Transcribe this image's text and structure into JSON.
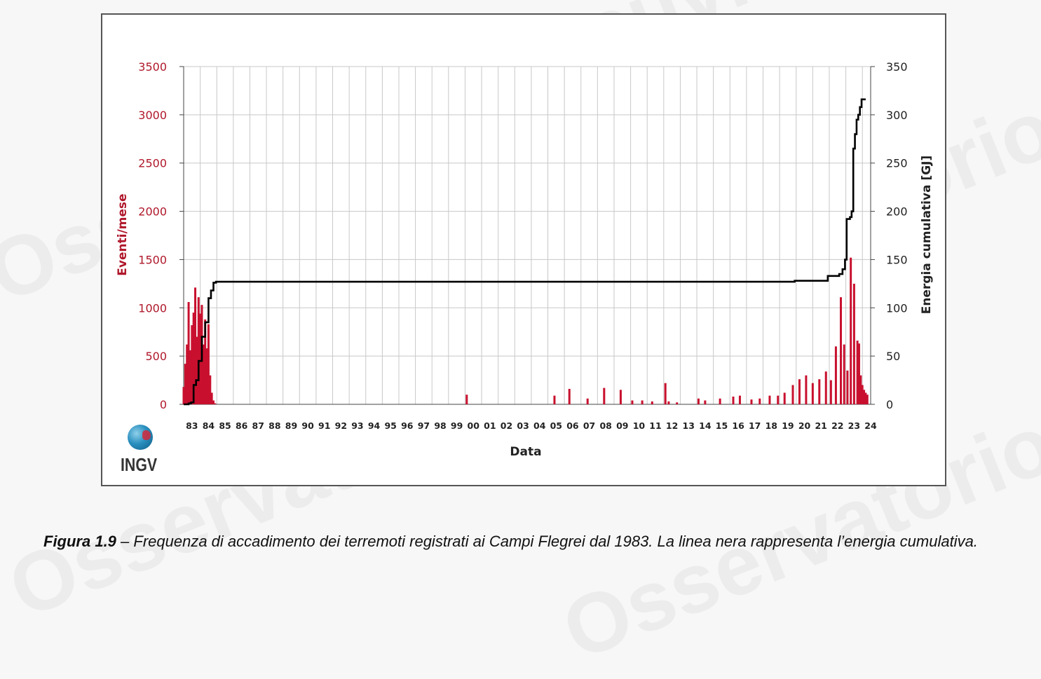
{
  "caption": {
    "label": "Figura 1.9",
    "text": " – Frequenza di accadimento dei terremoti registrati ai Campi Flegrei dal 1983. La linea nera rappresenta l’energia cumulativa."
  },
  "logo": {
    "text": "INGV",
    "icon": "ingv-globe-icon"
  },
  "watermark": {
    "text": "Osservatorio Vesuviano"
  },
  "colors": {
    "bars": "#c8102e",
    "line": "#000000",
    "left_axis": "#b0182b",
    "grid": "#c8c8c8"
  },
  "chart_data": {
    "type": "bar",
    "title": "",
    "xlabel": "Data",
    "ylabel": "Eventi/mese",
    "y2label": "Energia cumulativa [GJ]",
    "ylim": [
      0,
      3500
    ],
    "y2lim": [
      0,
      350
    ],
    "yticks": [
      "0",
      "500",
      "1000",
      "1500",
      "2000",
      "2500",
      "3000",
      "3500"
    ],
    "y2ticks": [
      "0",
      "50",
      "100",
      "150",
      "200",
      "250",
      "300",
      "350"
    ],
    "xticks": [
      "83",
      "84",
      "85",
      "86",
      "87",
      "88",
      "89",
      "90",
      "91",
      "92",
      "93",
      "94",
      "95",
      "96",
      "97",
      "98",
      "99",
      "00",
      "01",
      "02",
      "03",
      "04",
      "05",
      "06",
      "07",
      "08",
      "09",
      "10",
      "11",
      "12",
      "13",
      "14",
      "15",
      "16",
      "17",
      "18",
      "19",
      "20",
      "21",
      "22",
      "23",
      "24"
    ],
    "grid": true,
    "series": [
      {
        "type": "bar",
        "axis": "left",
        "x": [
          1983.0,
          1983.1,
          1983.2,
          1983.3,
          1983.4,
          1983.5,
          1983.6,
          1983.7,
          1983.8,
          1983.9,
          1984.0,
          1984.1,
          1984.2,
          1984.3,
          1984.4,
          1984.5,
          1984.6,
          1984.7,
          1984.8,
          1984.9,
          2000.1,
          2005.4,
          2006.3,
          2007.4,
          2008.4,
          2009.4,
          2010.1,
          2010.7,
          2011.3,
          2012.1,
          2012.3,
          2012.8,
          2014.1,
          2014.5,
          2015.4,
          2016.2,
          2016.6,
          2017.3,
          2017.8,
          2018.4,
          2018.9,
          2019.3,
          2019.8,
          2020.2,
          2020.6,
          2021.0,
          2021.4,
          2021.8,
          2022.1,
          2022.4,
          2022.7,
          2022.9,
          2023.1,
          2023.3,
          2023.5,
          2023.7,
          2023.8,
          2023.9,
          2024.0,
          2024.1,
          2024.2,
          2024.3
        ],
        "values": [
          180,
          420,
          620,
          1060,
          560,
          820,
          950,
          1210,
          700,
          1110,
          940,
          1030,
          620,
          880,
          580,
          830,
          300,
          120,
          40,
          10,
          100,
          90,
          160,
          60,
          170,
          150,
          40,
          40,
          30,
          220,
          30,
          20,
          60,
          40,
          60,
          80,
          90,
          50,
          60,
          90,
          90,
          120,
          200,
          260,
          300,
          220,
          260,
          340,
          250,
          600,
          1110,
          620,
          350,
          1520,
          1250,
          660,
          630,
          300,
          200,
          150,
          120,
          100
        ]
      },
      {
        "type": "line",
        "axis": "right",
        "x": [
          1983.0,
          1983.3,
          1983.45,
          1983.6,
          1983.75,
          1983.9,
          1984.1,
          1984.3,
          1984.5,
          1984.65,
          1984.8,
          1984.95,
          2000.0,
          2019.9,
          2019.91,
          2021.9,
          2021.91,
          2022.4,
          2022.6,
          2022.8,
          2022.95,
          2023.05,
          2023.15,
          2023.25,
          2023.35,
          2023.45,
          2023.55,
          2023.65,
          2023.75,
          2023.85,
          2023.95,
          2024.1,
          2024.2
        ],
        "values": [
          0,
          1,
          2,
          20,
          25,
          45,
          70,
          85,
          110,
          118,
          126,
          127,
          127,
          127,
          128,
          128,
          133,
          133,
          135,
          140,
          150,
          192,
          192,
          194,
          200,
          265,
          280,
          295,
          300,
          308,
          316,
          316,
          316
        ]
      }
    ]
  }
}
